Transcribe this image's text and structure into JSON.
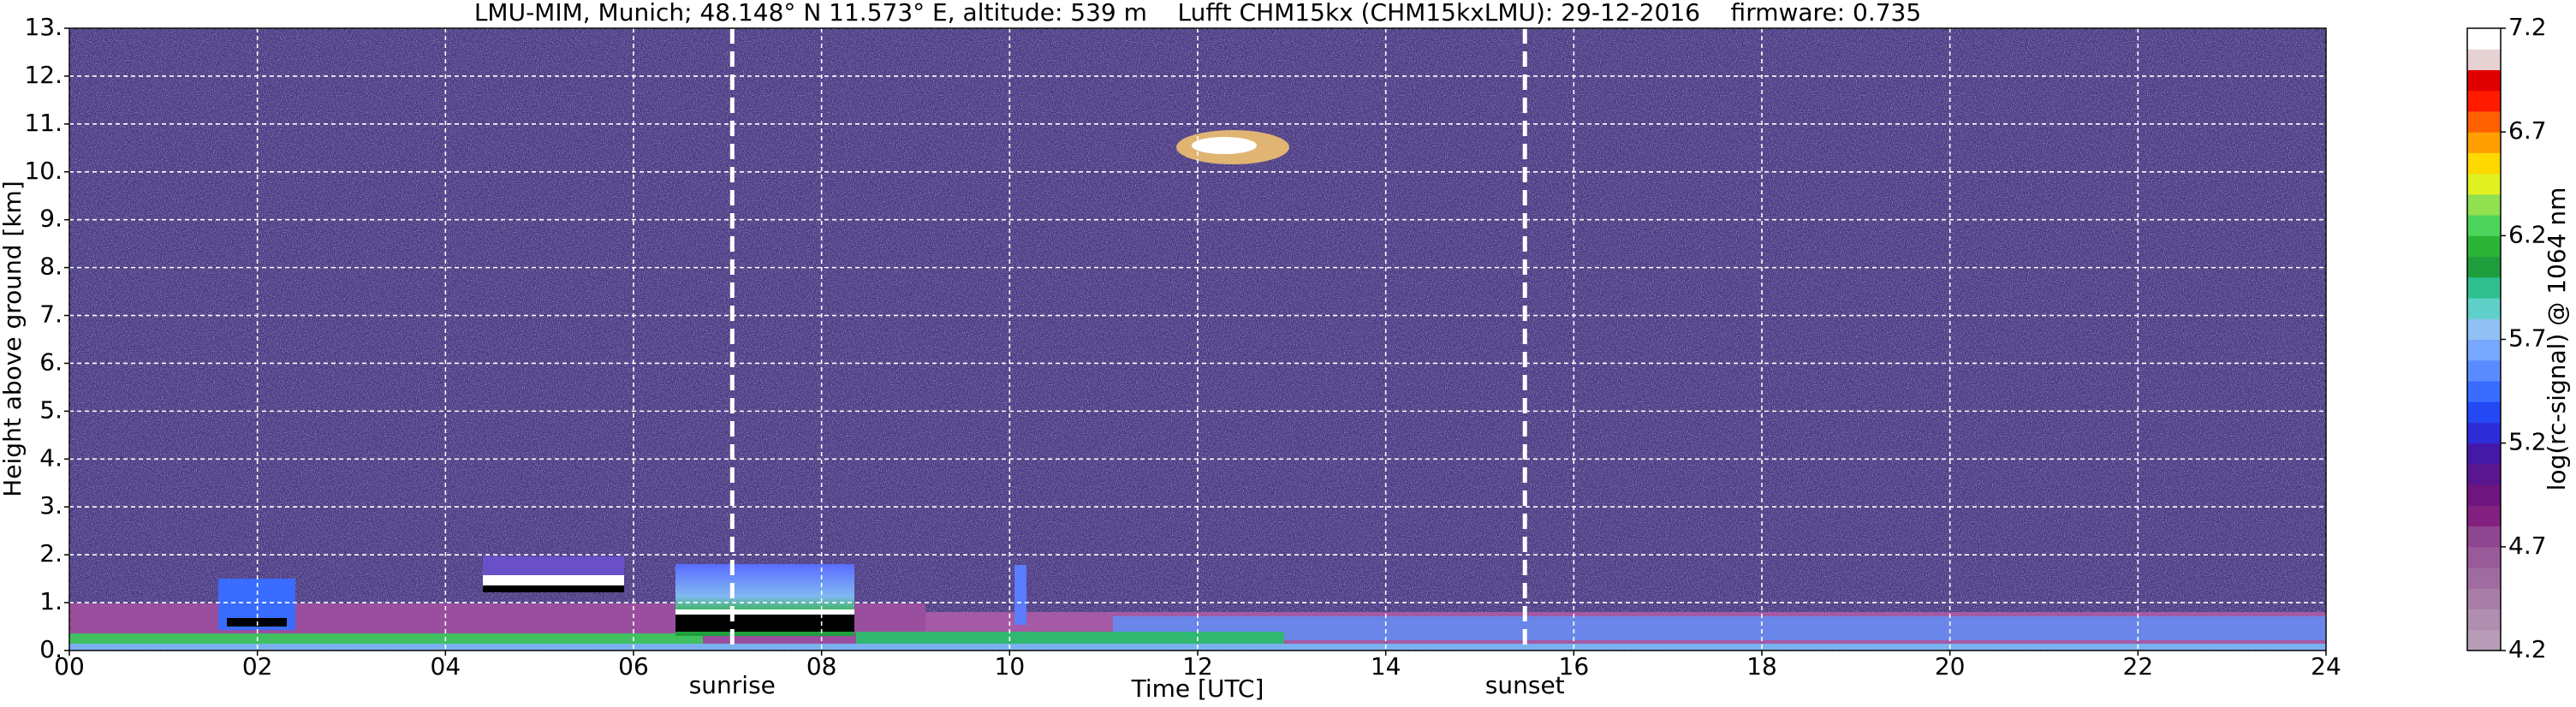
{
  "chart_data": {
    "type": "heatmap",
    "title": "LMU-MIM, Munich; 48.148° N 11.573° E, altitude: 539 m    Lufft CHM15kx (CHM15kxLMU): 29-12-2016    firmware: 0.735",
    "xlabel": "Time [UTC]",
    "ylabel": "Height above ground [km]",
    "xlim": [
      0,
      24
    ],
    "xticks": [
      {
        "value": 0,
        "label": "00"
      },
      {
        "value": 2,
        "label": "02"
      },
      {
        "value": 4,
        "label": "04"
      },
      {
        "value": 6,
        "label": "06"
      },
      {
        "value": 8,
        "label": "08"
      },
      {
        "value": 10,
        "label": "10"
      },
      {
        "value": 12,
        "label": "12"
      },
      {
        "value": 14,
        "label": "14"
      },
      {
        "value": 16,
        "label": "16"
      },
      {
        "value": 18,
        "label": "18"
      },
      {
        "value": 20,
        "label": "20"
      },
      {
        "value": 22,
        "label": "22"
      },
      {
        "value": 24,
        "label": "24"
      }
    ],
    "ylim": [
      0,
      13
    ],
    "yticks": [
      {
        "value": 0,
        "label": "0."
      },
      {
        "value": 1,
        "label": "1."
      },
      {
        "value": 2,
        "label": "2."
      },
      {
        "value": 3,
        "label": "3."
      },
      {
        "value": 4,
        "label": "4."
      },
      {
        "value": 5,
        "label": "5."
      },
      {
        "value": 6,
        "label": "6."
      },
      {
        "value": 7,
        "label": "7."
      },
      {
        "value": 8,
        "label": "8."
      },
      {
        "value": 9,
        "label": "9."
      },
      {
        "value": 10,
        "label": "10."
      },
      {
        "value": 11,
        "label": "11."
      },
      {
        "value": 12,
        "label": "12."
      },
      {
        "value": 13,
        "label": "13."
      }
    ],
    "grid": true,
    "annotations": [
      {
        "text": "sunrise",
        "x": 7.05
      },
      {
        "text": "sunset",
        "x": 15.48
      }
    ],
    "colorbar": {
      "label": "log(rc-signal) @ 1064 nm",
      "lim": [
        4.2,
        7.2
      ],
      "ticks": [
        4.2,
        4.7,
        5.2,
        5.7,
        6.2,
        6.7,
        7.2
      ],
      "colors": [
        "#b79db7",
        "#b08eb0",
        "#a87ea8",
        "#a06ca0",
        "#985a98",
        "#8f4690",
        "#82207f",
        "#6e1580",
        "#5a168e",
        "#4419a8",
        "#2e2ed8",
        "#2448f4",
        "#3a6cff",
        "#5a8cff",
        "#78a8ff",
        "#90c0f4",
        "#5ed0c8",
        "#30c090",
        "#1e9e3c",
        "#2cb436",
        "#4cd45c",
        "#90e050",
        "#e0f020",
        "#ffd800",
        "#ffa000",
        "#ff6000",
        "#ff1a00",
        "#e00000",
        "#e6d2d2",
        "#ffffff"
      ]
    }
  }
}
